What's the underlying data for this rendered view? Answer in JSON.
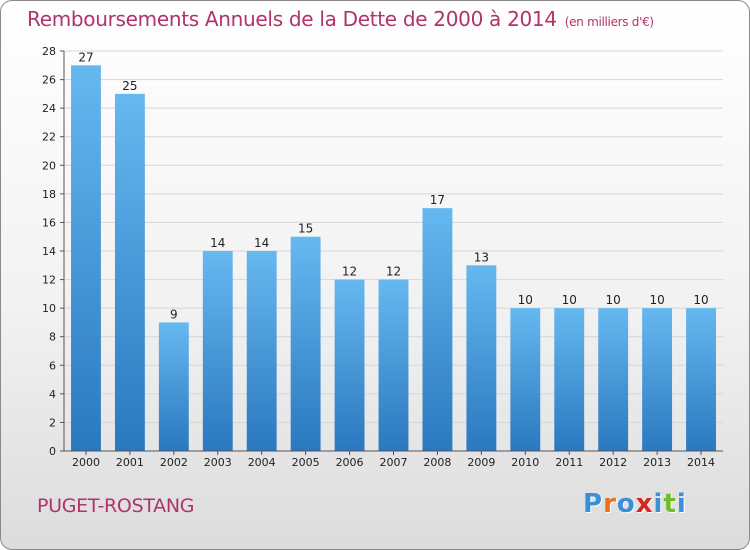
{
  "chart_data": {
    "type": "bar",
    "title": "Remboursements Annuels de la Dette de 2000 à 2014",
    "unit_note": "(en milliers d'€)",
    "xlabel": "",
    "ylabel": "",
    "categories": [
      "2000",
      "2001",
      "2002",
      "2003",
      "2004",
      "2005",
      "2006",
      "2007",
      "2008",
      "2009",
      "2010",
      "2011",
      "2012",
      "2013",
      "2014"
    ],
    "values": [
      27,
      25,
      9,
      14,
      14,
      15,
      12,
      12,
      17,
      13,
      10,
      10,
      10,
      10,
      10
    ],
    "ylim": [
      0,
      28
    ],
    "yticks": [
      0,
      2,
      4,
      6,
      8,
      10,
      12,
      14,
      16,
      18,
      20,
      22,
      24,
      26,
      28
    ],
    "grid": true,
    "bar_color_top": "#66b8f0",
    "bar_color_bottom": "#2a78bf"
  },
  "location": "PUGET-ROSTANG",
  "brand": {
    "letters": [
      "P",
      "r",
      "o",
      "x",
      "i",
      "t",
      "i"
    ],
    "colors": [
      "#3a8fd6",
      "#e8731e",
      "#3a8fd6",
      "#d9261c",
      "#3a8fd6",
      "#6cbf2a",
      "#3a8fd6"
    ]
  }
}
